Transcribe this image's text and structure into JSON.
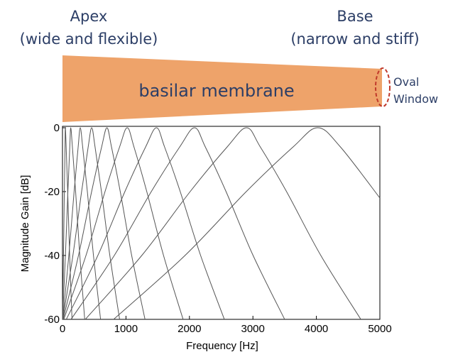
{
  "diagram": {
    "apex": "Apex",
    "apex_note": "(wide and flexible)",
    "base": "Base",
    "base_note": "(narrow and stiff)",
    "membrane": "basilar membrane",
    "oval_window": [
      "Oval",
      "Window"
    ]
  },
  "chart_data": {
    "type": "line",
    "x_label": "Frequency [Hz]",
    "y_label": "Magnitude Gain [dB]",
    "xlim": [
      0,
      5000
    ],
    "ylim": [
      -60,
      0
    ],
    "xticks": [
      0,
      1000,
      2000,
      3000,
      4000,
      5000
    ],
    "yticks": [
      0,
      -20,
      -40,
      -60
    ],
    "color": "#555555",
    "series": [
      {
        "x": [
          0,
          16,
          29,
          40,
          45,
          58,
          82,
          113,
          150
        ],
        "values": [
          -60,
          -40,
          -20,
          -6,
          0,
          -6,
          -20,
          -40,
          -60
        ]
      },
      {
        "x": [
          1,
          46,
          85,
          115,
          130,
          156,
          207,
          273,
          350
        ],
        "values": [
          -60,
          -40,
          -20,
          -6,
          0,
          -6,
          -20,
          -40,
          -60
        ]
      },
      {
        "x": [
          3,
          100,
          183,
          247,
          280,
          318,
          392,
          488,
          600
        ],
        "values": [
          -60,
          -40,
          -20,
          -6,
          0,
          -6,
          -20,
          -40,
          -60
        ]
      },
      {
        "x": [
          5,
          164,
          301,
          405,
          460,
          513,
          614,
          746,
          900
        ],
        "values": [
          -60,
          -40,
          -20,
          -6,
          0,
          -6,
          -20,
          -40,
          -60
        ]
      },
      {
        "x": [
          10,
          252,
          459,
          617,
          700,
          772,
          910,
          1090,
          1300
        ],
        "values": [
          -60,
          -40,
          -20,
          -6,
          0,
          -6,
          -20,
          -40,
          -60
        ]
      },
      {
        "x": [
          20,
          370,
          670,
          900,
          1020,
          1126,
          1328,
          1592,
          1900
        ],
        "values": [
          -60,
          -40,
          -20,
          -6,
          0,
          -6,
          -20,
          -40,
          -60
        ]
      },
      {
        "x": [
          60,
          557,
          983,
          1310,
          1480,
          1608,
          1855,
          2176,
          2550
        ],
        "values": [
          -60,
          -40,
          -20,
          -6,
          0,
          -6,
          -20,
          -40,
          -60
        ]
      },
      {
        "x": [
          135,
          816,
          1399,
          1847,
          2080,
          2250,
          2577,
          3003,
          3500
        ],
        "values": [
          -60,
          -40,
          -20,
          -6,
          0,
          -6,
          -20,
          -40,
          -60
        ]
      },
      {
        "x": [
          360,
          1249,
          2011,
          2595,
          2900,
          3116,
          3530,
          4070,
          4700
        ],
        "values": [
          -60,
          -40,
          -20,
          -6,
          0,
          -6,
          -20,
          -40,
          -60
        ]
      },
      {
        "x": [
          805,
          1930,
          2895,
          3634,
          4020,
          4378,
          5000
        ],
        "values": [
          -60,
          -40,
          -20,
          -6,
          0,
          -6,
          -22
        ]
      }
    ]
  }
}
